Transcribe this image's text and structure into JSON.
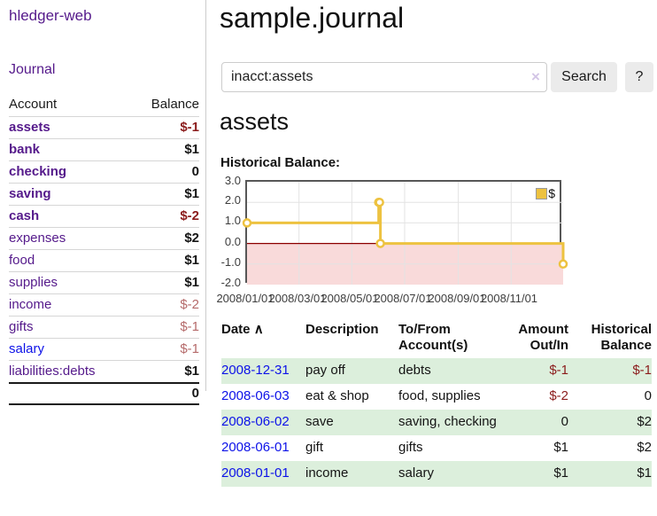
{
  "app": {
    "brand": "hledger-web"
  },
  "sidebar": {
    "journal_link": "Journal",
    "table": {
      "headers": [
        "Account",
        "Balance"
      ],
      "accounts": [
        {
          "name": "assets",
          "balance": "$-1",
          "level": 1,
          "bold": true,
          "negative": true
        },
        {
          "name": "bank",
          "balance": "$1",
          "level": 2,
          "bold": true,
          "negative": false
        },
        {
          "name": "checking",
          "balance": "0",
          "level": 3,
          "bold": true,
          "negative": false
        },
        {
          "name": "saving",
          "balance": "$1",
          "level": 3,
          "bold": true,
          "negative": false
        },
        {
          "name": "cash",
          "balance": "$-2",
          "level": 2,
          "bold": true,
          "negative": true
        },
        {
          "name": "expenses",
          "balance": "$2",
          "level": 1,
          "bold": false,
          "negative": false
        },
        {
          "name": "food",
          "balance": "$1",
          "level": 2,
          "bold": false,
          "negative": false
        },
        {
          "name": "supplies",
          "balance": "$1",
          "level": 2,
          "bold": false,
          "negative": false
        },
        {
          "name": "income",
          "balance": "$-2",
          "level": 1,
          "bold": false,
          "negative": true
        },
        {
          "name": "gifts",
          "balance": "$-1",
          "level": 2,
          "bold": false,
          "negative": true
        },
        {
          "name": "salary",
          "balance": "$-1",
          "level": 2,
          "bold": false,
          "negative": true
        },
        {
          "name": "liabilities:debts",
          "balance": "$1",
          "level": 1,
          "bold": false,
          "negative": false
        }
      ],
      "total": "0"
    }
  },
  "header": {
    "title": "sample.journal"
  },
  "search": {
    "value": "inacct:assets",
    "clear_icon": "×",
    "button": "Search",
    "help_button": "?"
  },
  "account_page": {
    "heading": "assets",
    "chart_label": "Historical Balance:"
  },
  "chart_data": {
    "type": "line",
    "style": "step",
    "title": "Historical Balance:",
    "legend": "$",
    "legend_position": "top-right",
    "grid": true,
    "ylim": [
      -2,
      3
    ],
    "x_range": [
      "2008-01-01",
      "2008-12-31"
    ],
    "y_ticks": [
      "3.0",
      "2.0",
      "1.0",
      "0.0",
      "-1.0",
      "-2.0"
    ],
    "x_ticks": [
      "2008/01/01",
      "2008/03/01",
      "2008/05/01",
      "2008/07/01",
      "2008/09/01",
      "2008/11/01"
    ],
    "series": [
      {
        "name": "$",
        "color": "#edc240",
        "points": [
          {
            "date": "2008-01-01",
            "value": 1
          },
          {
            "date": "2008-06-01",
            "value": 2
          },
          {
            "date": "2008-06-02",
            "value": 2
          },
          {
            "date": "2008-06-03",
            "value": 0
          },
          {
            "date": "2008-12-31",
            "value": -1
          }
        ]
      }
    ],
    "zero_line_color": "#8b0000",
    "negative_region_color": "#f9dada"
  },
  "register": {
    "headers": [
      "Date",
      "Description",
      "To/From Account(s)",
      "Amount Out/In",
      "Historical Balance"
    ],
    "sort_icon": "∧",
    "rows": [
      {
        "date": "2008-12-31",
        "description": "pay off",
        "accounts": "debts",
        "amount": "$-1",
        "balance": "$-1"
      },
      {
        "date": "2008-06-03",
        "description": "eat & shop",
        "accounts": "food, supplies",
        "amount": "$-2",
        "balance": "0"
      },
      {
        "date": "2008-06-02",
        "description": "save",
        "accounts": "saving, checking",
        "amount": "0",
        "balance": "$2"
      },
      {
        "date": "2008-06-01",
        "description": "gift",
        "accounts": "gifts",
        "amount": "$1",
        "balance": "$2"
      },
      {
        "date": "2008-01-01",
        "description": "income",
        "accounts": "salary",
        "amount": "$1",
        "balance": "$1"
      }
    ]
  },
  "colors": {
    "link_purple": "#551a8b",
    "link_blue": "#0d12e8",
    "negative_dark": "#8b1c1c",
    "negative_light": "#b56a6a",
    "row_stripe_green": "#dcefdc",
    "series_gold": "#edc240",
    "zero_line_red": "#8b0000",
    "negative_region_pink": "#f9dada",
    "button_gray": "#ebebeb"
  }
}
